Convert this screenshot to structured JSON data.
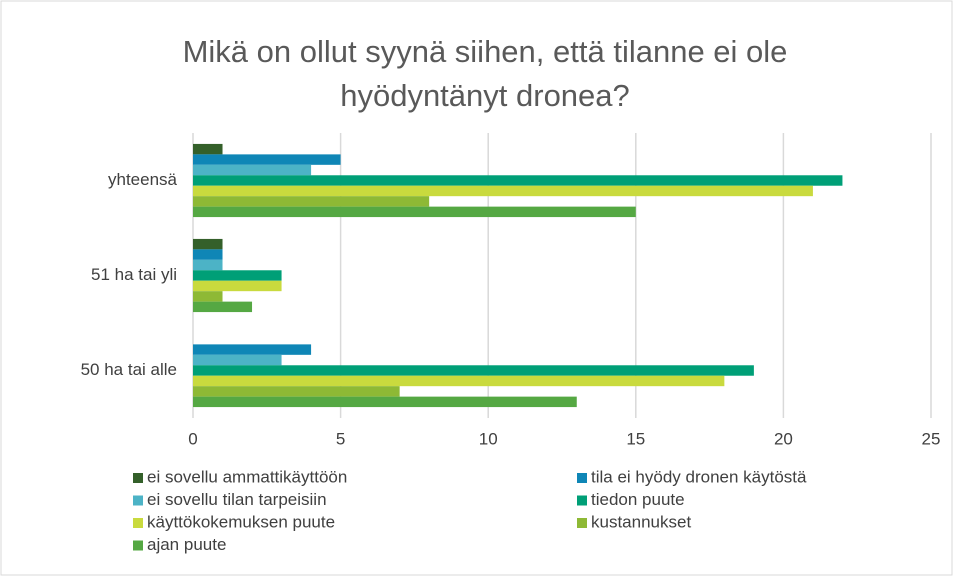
{
  "chart_data": {
    "type": "bar",
    "orientation": "horizontal",
    "title": "Mikä on ollut syynä siihen, että tilanne ei ole hyödyntänyt dronea?",
    "categories": [
      "yhteensä",
      "51 ha tai yli",
      "50 ha tai alle"
    ],
    "series": [
      {
        "name": "ei sovellu ammattikäyttöön",
        "color": "#34602a",
        "values": [
          1,
          1,
          0
        ]
      },
      {
        "name": "tila ei hyödy dronen käytöstä",
        "color": "#0f86b6",
        "values": [
          5,
          1,
          4
        ]
      },
      {
        "name": "ei sovellu tilan tarpeisiin",
        "color": "#4cb3c6",
        "values": [
          4,
          1,
          3
        ]
      },
      {
        "name": "tiedon puute",
        "color": "#009f77",
        "values": [
          22,
          3,
          19
        ]
      },
      {
        "name": "käyttökokemuksen puute",
        "color": "#c9da3e",
        "values": [
          21,
          3,
          18
        ]
      },
      {
        "name": "kustannukset",
        "color": "#8eb935",
        "values": [
          8,
          1,
          7
        ]
      },
      {
        "name": "ajan puute",
        "color": "#55a843",
        "values": [
          15,
          2,
          13
        ]
      }
    ],
    "xlim": [
      0,
      25
    ],
    "xticks": [
      0,
      5,
      10,
      15,
      20,
      25
    ],
    "grid": true
  }
}
